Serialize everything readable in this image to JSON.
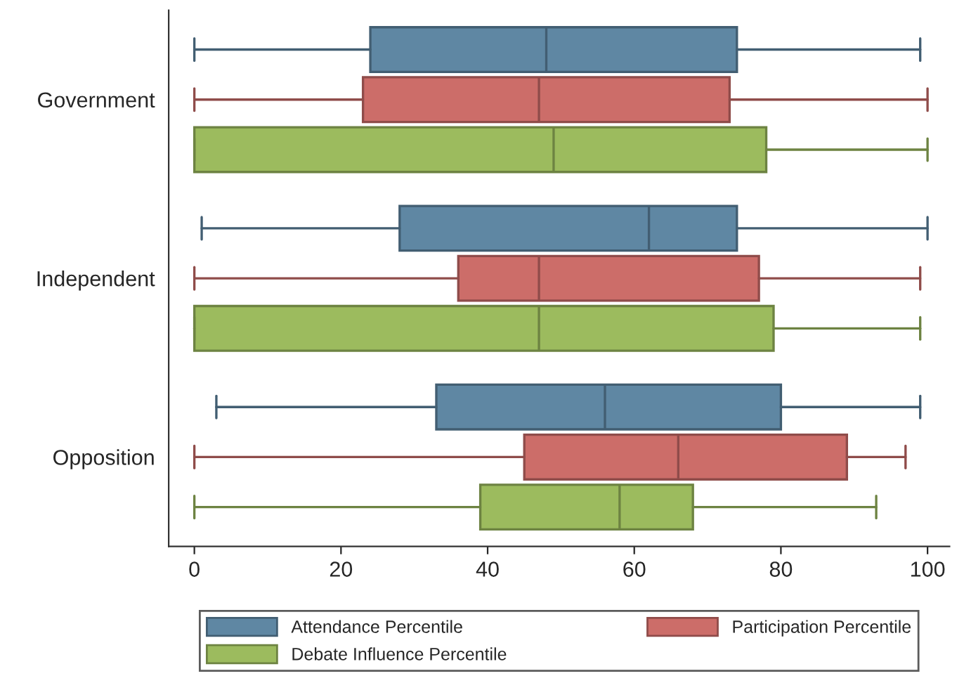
{
  "chart_data": {
    "type": "box",
    "orientation": "horizontal",
    "categories": [
      "Government",
      "Independent",
      "Opposition"
    ],
    "series": [
      {
        "name": "Attendance Percentile",
        "color": "#5f87a3",
        "boxes": [
          {
            "low": 0,
            "q1": 24,
            "median": 48,
            "q3": 74,
            "high": 99
          },
          {
            "low": 1,
            "q1": 28,
            "median": 62,
            "q3": 74,
            "high": 100
          },
          {
            "low": 3,
            "q1": 33,
            "median": 56,
            "q3": 80,
            "high": 99
          }
        ]
      },
      {
        "name": "Participation Percentile",
        "color": "#cc6d69",
        "boxes": [
          {
            "low": 0,
            "q1": 23,
            "median": 47,
            "q3": 73,
            "high": 100
          },
          {
            "low": 0,
            "q1": 36,
            "median": 47,
            "q3": 77,
            "high": 99
          },
          {
            "low": 0,
            "q1": 45,
            "median": 66,
            "q3": 89,
            "high": 97
          }
        ]
      },
      {
        "name": "Debate Influence Percentile",
        "color": "#9cbb5e",
        "boxes": [
          {
            "low": 0,
            "q1": 0,
            "median": 49,
            "q3": 78,
            "high": 100
          },
          {
            "low": 0,
            "q1": 0,
            "median": 47,
            "q3": 79,
            "high": 99
          },
          {
            "low": 0,
            "q1": 39,
            "median": 58,
            "q3": 68,
            "high": 93
          }
        ]
      }
    ],
    "xlim": [
      -3.5,
      103
    ],
    "xticks": [
      0,
      20,
      40,
      60,
      80,
      100
    ],
    "grid": false,
    "legend": "bottom"
  }
}
